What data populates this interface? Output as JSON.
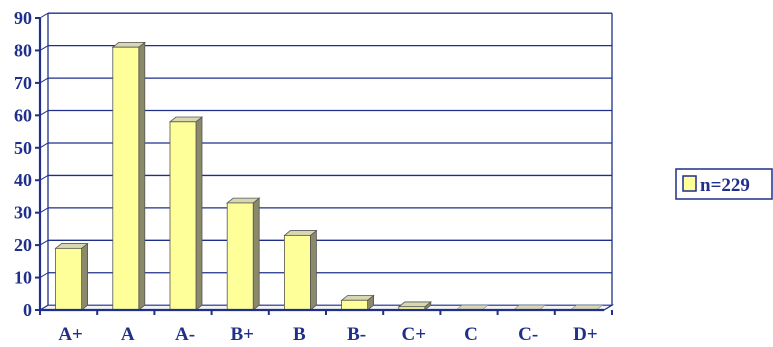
{
  "chart_data": {
    "type": "bar",
    "categories": [
      "A+",
      "A",
      "A-",
      "B+",
      "B",
      "B-",
      "C+",
      "C",
      "C-",
      "D+"
    ],
    "series": [
      {
        "name": "n=229",
        "values": [
          19,
          81,
          58,
          33,
          23,
          3,
          1,
          0,
          0,
          0
        ]
      }
    ],
    "yticks": [
      "0",
      "10",
      "20",
      "30",
      "40",
      "50",
      "60",
      "70",
      "80",
      "90"
    ],
    "ylim": [
      0,
      90
    ],
    "grid": true,
    "legend_position": "right",
    "title": "",
    "xlabel": "",
    "ylabel": "",
    "colors": {
      "bar_face": "#ffff99",
      "bar_side": "#8a8a6a",
      "bar_top": "#d8d8b0",
      "text": "#1f2f8a",
      "grid": "#1f2f8a",
      "axis": "#1f2f8a"
    }
  }
}
